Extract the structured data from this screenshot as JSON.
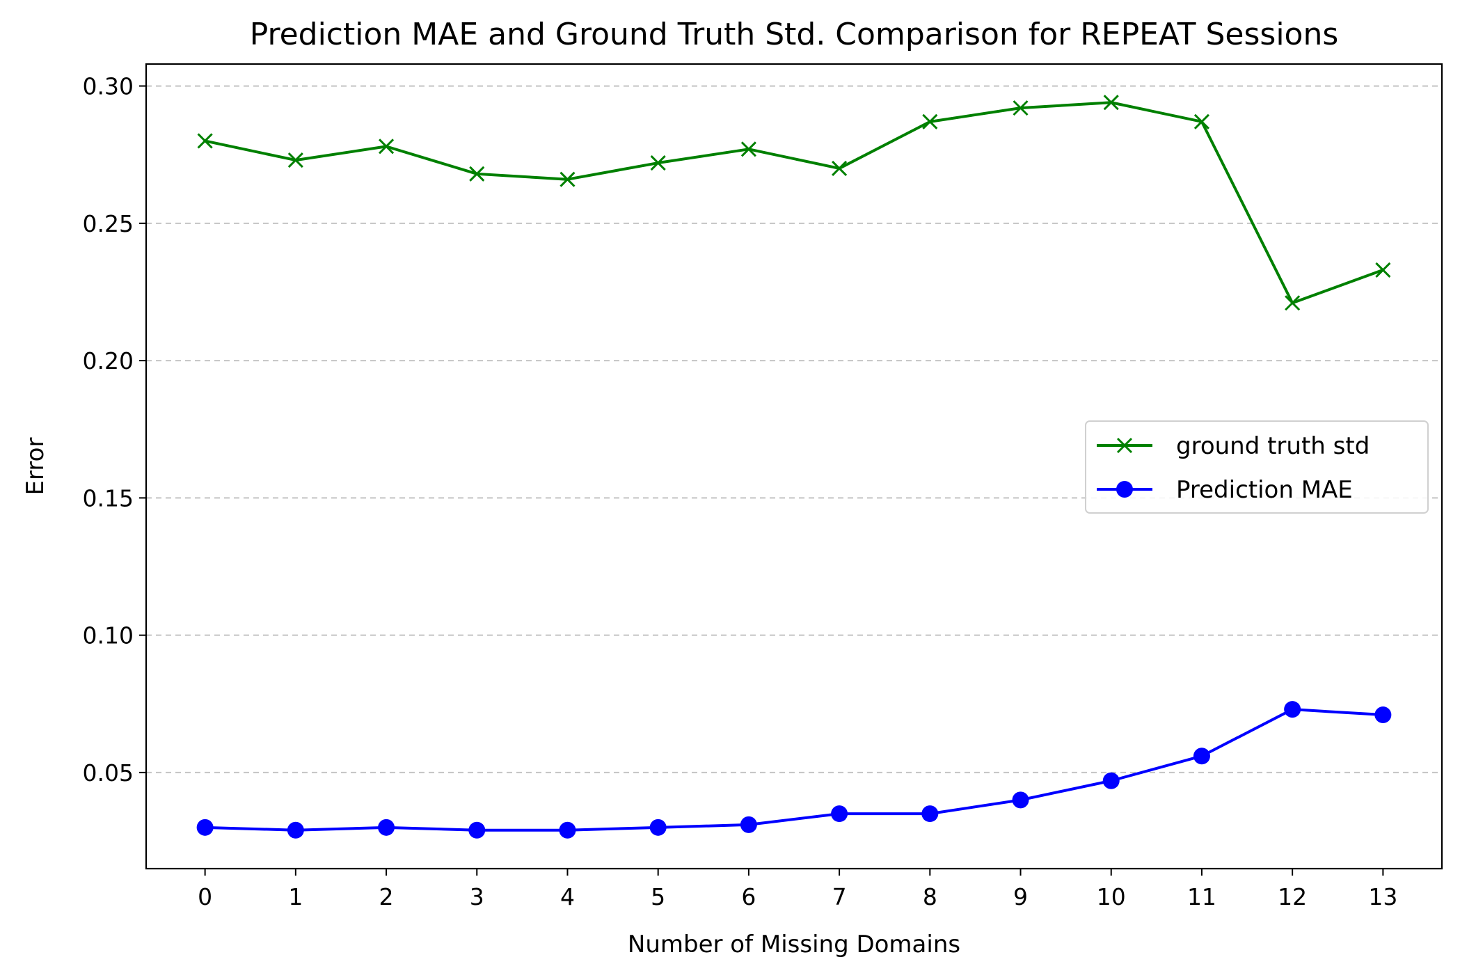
{
  "chart_data": {
    "type": "line",
    "title": "Prediction MAE and Ground Truth Std. Comparison for REPEAT Sessions",
    "xlabel": "Number of Missing Domains",
    "ylabel": "Error",
    "x": [
      0,
      1,
      2,
      3,
      4,
      5,
      6,
      7,
      8,
      9,
      10,
      11,
      12,
      13
    ],
    "xlim": [
      -0.65,
      13.65
    ],
    "ylim": [
      0.015,
      0.308
    ],
    "y_ticks": [
      0.05,
      0.1,
      0.15,
      0.2,
      0.25,
      0.3
    ],
    "y_tick_labels": [
      "0.05",
      "0.10",
      "0.15",
      "0.20",
      "0.25",
      "0.30"
    ],
    "x_tick_labels": [
      "0",
      "1",
      "2",
      "3",
      "4",
      "5",
      "6",
      "7",
      "8",
      "9",
      "10",
      "11",
      "12",
      "13"
    ],
    "grid": "horizontal dashed",
    "legend_position": "center-right",
    "series": [
      {
        "name": "ground truth std",
        "color": "#008000",
        "marker": "x",
        "values": [
          0.28,
          0.273,
          0.278,
          0.268,
          0.266,
          0.272,
          0.277,
          0.27,
          0.287,
          0.292,
          0.294,
          0.287,
          0.221,
          0.233
        ]
      },
      {
        "name": "Prediction MAE",
        "color": "#0000ff",
        "marker": "o",
        "values": [
          0.03,
          0.029,
          0.03,
          0.029,
          0.029,
          0.03,
          0.031,
          0.035,
          0.035,
          0.04,
          0.047,
          0.056,
          0.073,
          0.071
        ]
      }
    ]
  }
}
